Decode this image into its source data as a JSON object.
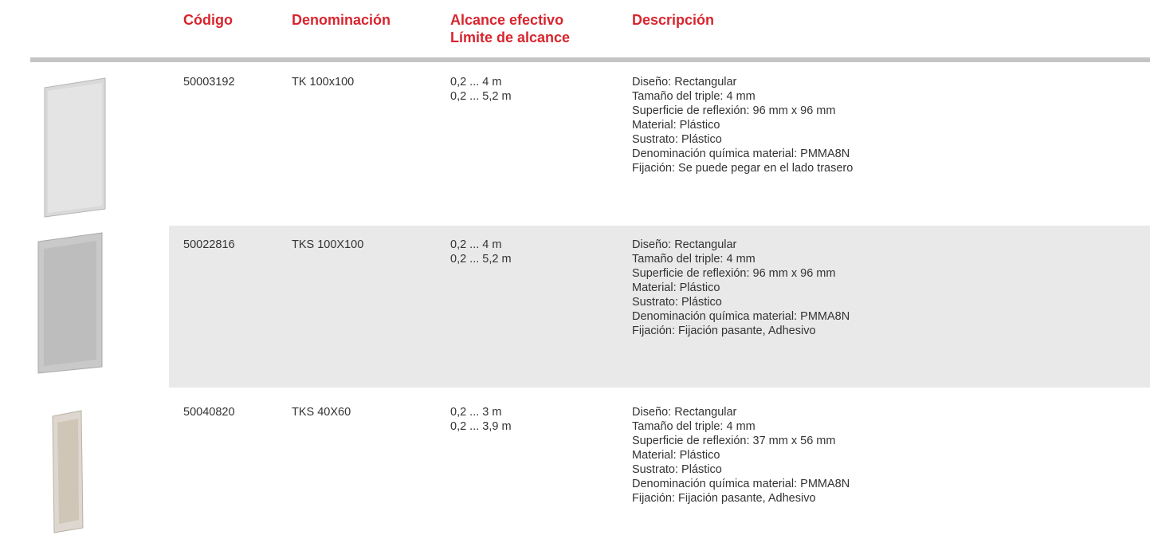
{
  "header": {
    "code": "Código",
    "name": "Denominación",
    "range": [
      "Alcance efectivo",
      "Límite de alcance"
    ],
    "description": "Descripción"
  },
  "rows": [
    {
      "code": "50003192",
      "name": "TK 100x100",
      "range": [
        "0,2 ... 4 m",
        "0,2 ... 5,2 m"
      ],
      "description": [
        "Diseño: Rectangular",
        "Tamaño del triple: 4 mm",
        "Superficie de reflexión: 96 mm x 96 mm",
        "Material: Plástico",
        "Sustrato: Plástico",
        "Denominación química material: PMMA8N",
        "Fijación: Se puede pegar en el lado trasero"
      ]
    },
    {
      "code": "50022816",
      "name": "TKS 100X100",
      "range": [
        "0,2 ... 4 m",
        "0,2 ... 5,2 m"
      ],
      "description": [
        "Diseño: Rectangular",
        "Tamaño del triple: 4 mm",
        "Superficie de reflexión: 96 mm x 96 mm",
        "Material: Plástico",
        "Sustrato: Plástico",
        "Denominación química material: PMMA8N",
        "Fijación: Fijación pasante, Adhesivo"
      ]
    },
    {
      "code": "50040820",
      "name": "TKS 40X60",
      "range": [
        "0,2 ... 3 m",
        "0,2 ... 3,9 m"
      ],
      "description": [
        "Diseño: Rectangular",
        "Tamaño del triple: 4 mm",
        "Superficie de reflexión: 37 mm x 56 mm",
        "Material: Plástico",
        "Sustrato: Plástico",
        "Denominación química material: PMMA8N",
        "Fijación: Fijación pasante, Adhesivo"
      ]
    }
  ]
}
